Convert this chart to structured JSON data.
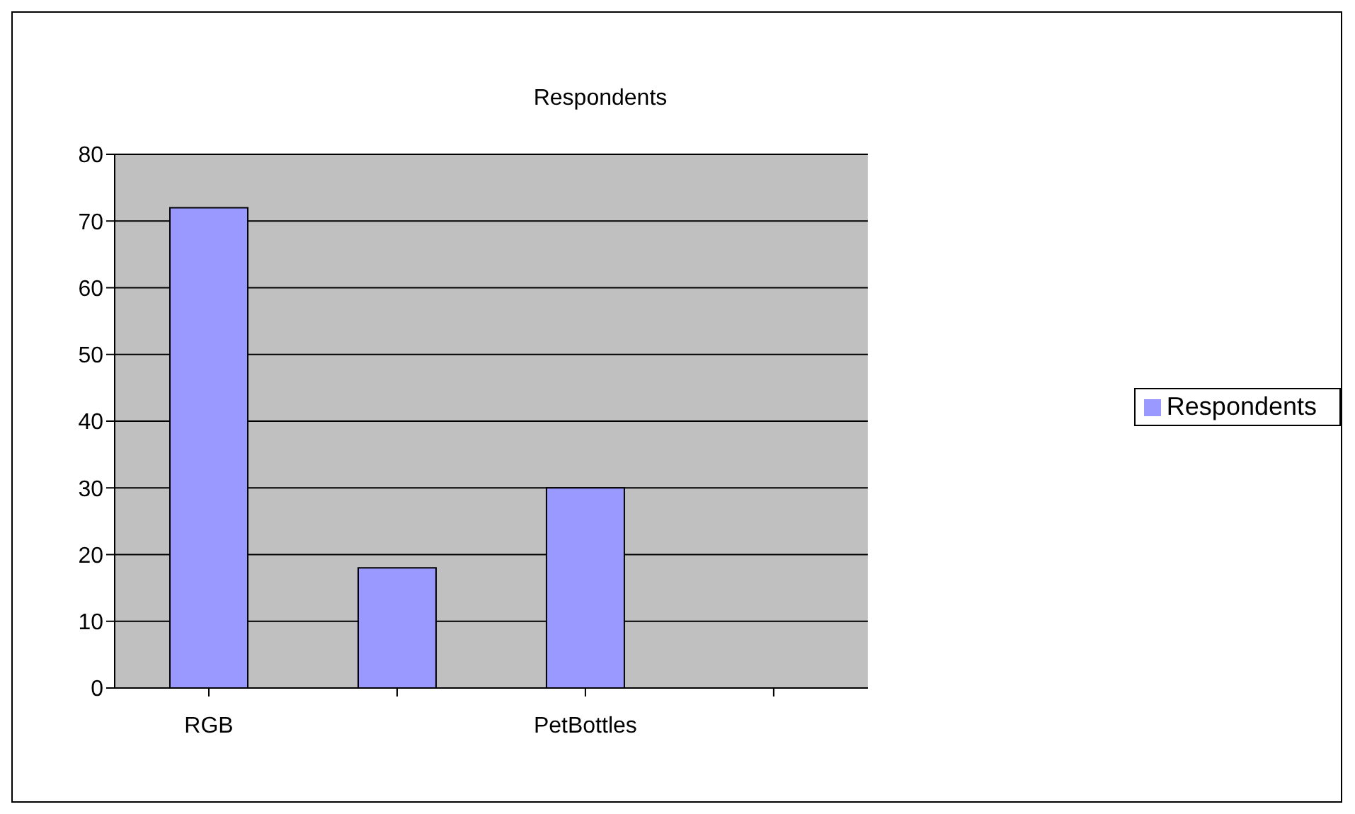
{
  "chart_data": {
    "type": "bar",
    "title": "Respondents",
    "categories": [
      "RGB",
      null,
      "PetBottles",
      null
    ],
    "series": [
      {
        "name": "Respondents",
        "color": "#9999ff",
        "values": [
          72,
          18,
          30,
          null
        ]
      }
    ],
    "ylim": [
      0,
      80
    ],
    "yticks": [
      0,
      10,
      20,
      30,
      40,
      50,
      60,
      70,
      80
    ],
    "grid": "y",
    "legend": "right"
  }
}
